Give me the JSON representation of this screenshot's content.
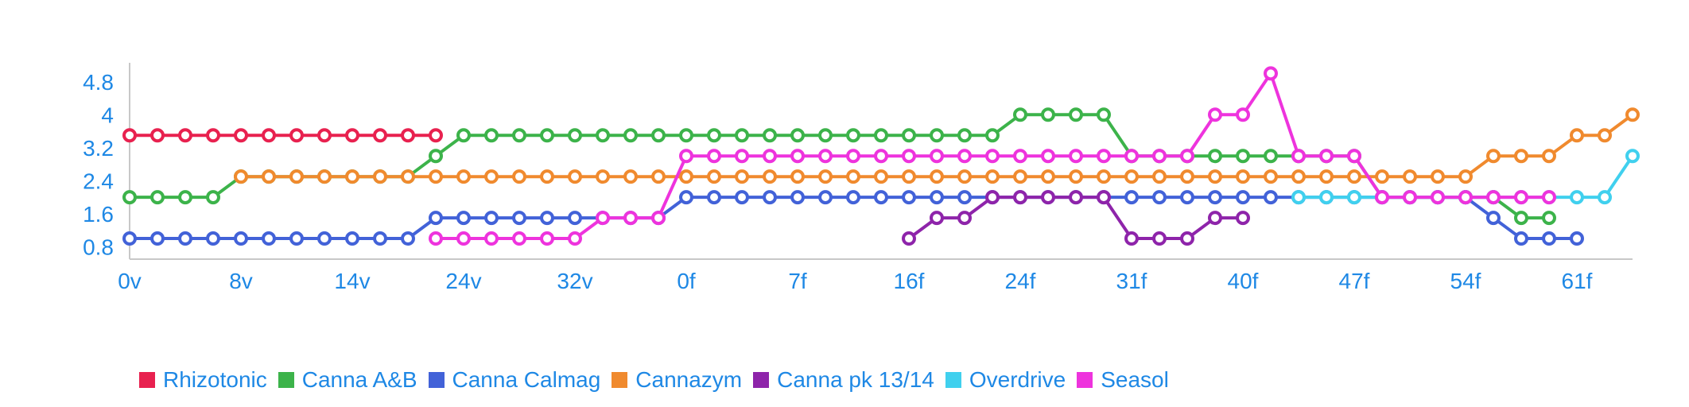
{
  "chart_data": {
    "type": "line",
    "y_ticks": [
      "4.8",
      "4",
      "3.2",
      "2.4",
      "1.6",
      "0.8"
    ],
    "x_ticks": [
      "0v",
      "8v",
      "14v",
      "24v",
      "32v",
      "0f",
      "7f",
      "16f",
      "24f",
      "31f",
      "40f",
      "47f",
      "54f",
      "61f"
    ],
    "ylim": [
      0.5,
      5.2
    ],
    "xlim": [
      0,
      54
    ],
    "grid": false,
    "legend_position": "bottom",
    "text_color": "#1e88e5",
    "axis_color": "#c8c8c8",
    "series": [
      {
        "name": "Rhizotonic",
        "color": "#e8214f",
        "points": [
          [
            0,
            3.5
          ],
          [
            1,
            3.5
          ],
          [
            2,
            3.5
          ],
          [
            3,
            3.5
          ],
          [
            4,
            3.5
          ],
          [
            5,
            3.5
          ],
          [
            6,
            3.5
          ],
          [
            7,
            3.5
          ],
          [
            8,
            3.5
          ],
          [
            9,
            3.5
          ],
          [
            10,
            3.5
          ],
          [
            11,
            3.5
          ]
        ]
      },
      {
        "name": "Canna A&B",
        "color": "#3cb34a",
        "points": [
          [
            0,
            2
          ],
          [
            1,
            2
          ],
          [
            2,
            2
          ],
          [
            3,
            2
          ],
          [
            4,
            2.5
          ],
          [
            5,
            2.5
          ],
          [
            6,
            2.5
          ],
          [
            7,
            2.5
          ],
          [
            8,
            2.5
          ],
          [
            9,
            2.5
          ],
          [
            10,
            2.5
          ],
          [
            11,
            3
          ],
          [
            12,
            3.5
          ],
          [
            13,
            3.5
          ],
          [
            14,
            3.5
          ],
          [
            15,
            3.5
          ],
          [
            16,
            3.5
          ],
          [
            17,
            3.5
          ],
          [
            18,
            3.5
          ],
          [
            19,
            3.5
          ],
          [
            20,
            3.5
          ],
          [
            21,
            3.5
          ],
          [
            22,
            3.5
          ],
          [
            23,
            3.5
          ],
          [
            24,
            3.5
          ],
          [
            25,
            3.5
          ],
          [
            26,
            3.5
          ],
          [
            27,
            3.5
          ],
          [
            28,
            3.5
          ],
          [
            29,
            3.5
          ],
          [
            30,
            3.5
          ],
          [
            31,
            3.5
          ],
          [
            32,
            4
          ],
          [
            33,
            4
          ],
          [
            34,
            4
          ],
          [
            35,
            4
          ],
          [
            36,
            3
          ],
          [
            37,
            3
          ],
          [
            38,
            3
          ],
          [
            39,
            3
          ],
          [
            40,
            3
          ],
          [
            41,
            3
          ],
          [
            42,
            3
          ],
          [
            43,
            3
          ],
          [
            44,
            3
          ],
          [
            45,
            2
          ],
          [
            46,
            2
          ],
          [
            47,
            2
          ],
          [
            48,
            2
          ],
          [
            49,
            2
          ],
          [
            50,
            1.5
          ],
          [
            51,
            1.5
          ]
        ]
      },
      {
        "name": "Canna Calmag",
        "color": "#4262d8",
        "points": [
          [
            0,
            1
          ],
          [
            1,
            1
          ],
          [
            2,
            1
          ],
          [
            3,
            1
          ],
          [
            4,
            1
          ],
          [
            5,
            1
          ],
          [
            6,
            1
          ],
          [
            7,
            1
          ],
          [
            8,
            1
          ],
          [
            9,
            1
          ],
          [
            10,
            1
          ],
          [
            11,
            1.5
          ],
          [
            12,
            1.5
          ],
          [
            13,
            1.5
          ],
          [
            14,
            1.5
          ],
          [
            15,
            1.5
          ],
          [
            16,
            1.5
          ],
          [
            17,
            1.5
          ],
          [
            18,
            1.5
          ],
          [
            19,
            1.5
          ],
          [
            20,
            2
          ],
          [
            21,
            2
          ],
          [
            22,
            2
          ],
          [
            23,
            2
          ],
          [
            24,
            2
          ],
          [
            25,
            2
          ],
          [
            26,
            2
          ],
          [
            27,
            2
          ],
          [
            28,
            2
          ],
          [
            29,
            2
          ],
          [
            30,
            2
          ],
          [
            31,
            2
          ],
          [
            32,
            2
          ],
          [
            33,
            2
          ],
          [
            34,
            2
          ],
          [
            35,
            2
          ],
          [
            36,
            2
          ],
          [
            37,
            2
          ],
          [
            38,
            2
          ],
          [
            39,
            2
          ],
          [
            40,
            2
          ],
          [
            41,
            2
          ],
          [
            42,
            2
          ],
          [
            43,
            2
          ],
          [
            44,
            2
          ],
          [
            45,
            2
          ],
          [
            46,
            2
          ],
          [
            47,
            2
          ],
          [
            48,
            2
          ],
          [
            49,
            1.5
          ],
          [
            50,
            1
          ],
          [
            51,
            1
          ],
          [
            52,
            1
          ]
        ]
      },
      {
        "name": "Cannazym",
        "color": "#f08a2e",
        "points": [
          [
            4,
            2.5
          ],
          [
            5,
            2.5
          ],
          [
            6,
            2.5
          ],
          [
            7,
            2.5
          ],
          [
            8,
            2.5
          ],
          [
            9,
            2.5
          ],
          [
            10,
            2.5
          ],
          [
            11,
            2.5
          ],
          [
            12,
            2.5
          ],
          [
            13,
            2.5
          ],
          [
            14,
            2.5
          ],
          [
            15,
            2.5
          ],
          [
            16,
            2.5
          ],
          [
            17,
            2.5
          ],
          [
            18,
            2.5
          ],
          [
            19,
            2.5
          ],
          [
            20,
            2.5
          ],
          [
            21,
            2.5
          ],
          [
            22,
            2.5
          ],
          [
            23,
            2.5
          ],
          [
            24,
            2.5
          ],
          [
            25,
            2.5
          ],
          [
            26,
            2.5
          ],
          [
            27,
            2.5
          ],
          [
            28,
            2.5
          ],
          [
            29,
            2.5
          ],
          [
            30,
            2.5
          ],
          [
            31,
            2.5
          ],
          [
            32,
            2.5
          ],
          [
            33,
            2.5
          ],
          [
            34,
            2.5
          ],
          [
            35,
            2.5
          ],
          [
            36,
            2.5
          ],
          [
            37,
            2.5
          ],
          [
            38,
            2.5
          ],
          [
            39,
            2.5
          ],
          [
            40,
            2.5
          ],
          [
            41,
            2.5
          ],
          [
            42,
            2.5
          ],
          [
            43,
            2.5
          ],
          [
            44,
            2.5
          ],
          [
            45,
            2.5
          ],
          [
            46,
            2.5
          ],
          [
            47,
            2.5
          ],
          [
            48,
            2.5
          ],
          [
            49,
            3
          ],
          [
            50,
            3
          ],
          [
            51,
            3
          ],
          [
            52,
            3.5
          ],
          [
            53,
            3.5
          ],
          [
            54,
            4
          ]
        ]
      },
      {
        "name": "Canna pk 13/14",
        "color": "#8e24aa",
        "points": [
          [
            28,
            1
          ],
          [
            29,
            1.5
          ],
          [
            30,
            1.5
          ],
          [
            31,
            2
          ],
          [
            32,
            2
          ],
          [
            33,
            2
          ],
          [
            34,
            2
          ],
          [
            35,
            2
          ],
          [
            36,
            1
          ],
          [
            37,
            1
          ],
          [
            38,
            1
          ],
          [
            39,
            1.5
          ],
          [
            40,
            1.5
          ]
        ]
      },
      {
        "name": "Overdrive",
        "color": "#40d0ee",
        "points": [
          [
            42,
            2
          ],
          [
            43,
            2
          ],
          [
            44,
            2
          ],
          [
            45,
            2
          ],
          [
            46,
            2
          ],
          [
            47,
            2
          ],
          [
            48,
            2
          ],
          [
            49,
            2
          ],
          [
            50,
            2
          ],
          [
            51,
            2
          ],
          [
            52,
            2
          ],
          [
            53,
            2
          ],
          [
            54,
            3
          ]
        ]
      },
      {
        "name": "Seasol",
        "color": "#ee33dd",
        "points": [
          [
            11,
            1
          ],
          [
            12,
            1
          ],
          [
            13,
            1
          ],
          [
            14,
            1
          ],
          [
            15,
            1
          ],
          [
            16,
            1
          ],
          [
            17,
            1.5
          ],
          [
            18,
            1.5
          ],
          [
            19,
            1.5
          ],
          [
            20,
            3
          ],
          [
            21,
            3
          ],
          [
            22,
            3
          ],
          [
            23,
            3
          ],
          [
            24,
            3
          ],
          [
            25,
            3
          ],
          [
            26,
            3
          ],
          [
            27,
            3
          ],
          [
            28,
            3
          ],
          [
            29,
            3
          ],
          [
            30,
            3
          ],
          [
            31,
            3
          ],
          [
            32,
            3
          ],
          [
            33,
            3
          ],
          [
            34,
            3
          ],
          [
            35,
            3
          ],
          [
            36,
            3
          ],
          [
            37,
            3
          ],
          [
            38,
            3
          ],
          [
            39,
            4
          ],
          [
            40,
            4
          ],
          [
            41,
            5
          ],
          [
            42,
            3
          ],
          [
            43,
            3
          ],
          [
            44,
            3
          ],
          [
            45,
            2
          ],
          [
            46,
            2
          ],
          [
            47,
            2
          ],
          [
            48,
            2
          ],
          [
            49,
            2
          ],
          [
            50,
            2
          ],
          [
            51,
            2
          ]
        ]
      }
    ]
  }
}
